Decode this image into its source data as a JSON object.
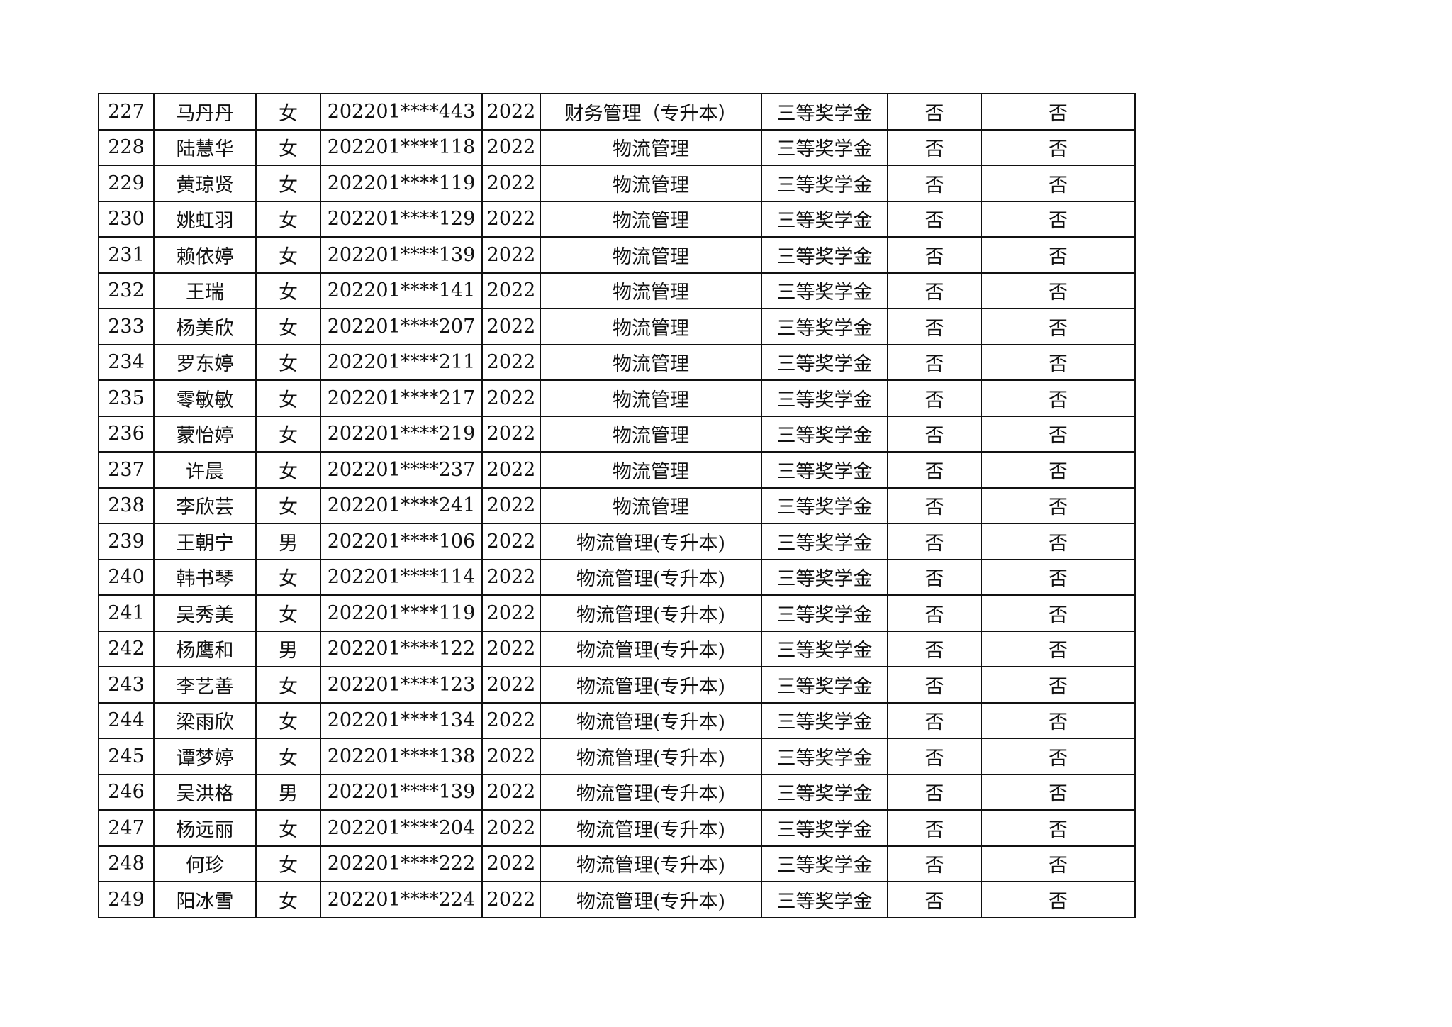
{
  "rows": [
    [
      "227",
      "马丹丹",
      "女",
      "202201****443",
      "2022",
      "财务管理（专升本）",
      "三等奖学金",
      "否",
      "否"
    ],
    [
      "228",
      "陆慧华",
      "女",
      "202201****118",
      "2022",
      "物流管理",
      "三等奖学金",
      "否",
      "否"
    ],
    [
      "229",
      "黄琼贤",
      "女",
      "202201****119",
      "2022",
      "物流管理",
      "三等奖学金",
      "否",
      "否"
    ],
    [
      "230",
      "姚虹羽",
      "女",
      "202201****129",
      "2022",
      "物流管理",
      "三等奖学金",
      "否",
      "否"
    ],
    [
      "231",
      "赖依婷",
      "女",
      "202201****139",
      "2022",
      "物流管理",
      "三等奖学金",
      "否",
      "否"
    ],
    [
      "232",
      "王瑞",
      "女",
      "202201****141",
      "2022",
      "物流管理",
      "三等奖学金",
      "否",
      "否"
    ],
    [
      "233",
      "杨美欣",
      "女",
      "202201****207",
      "2022",
      "物流管理",
      "三等奖学金",
      "否",
      "否"
    ],
    [
      "234",
      "罗东婷",
      "女",
      "202201****211",
      "2022",
      "物流管理",
      "三等奖学金",
      "否",
      "否"
    ],
    [
      "235",
      "零敏敏",
      "女",
      "202201****217",
      "2022",
      "物流管理",
      "三等奖学金",
      "否",
      "否"
    ],
    [
      "236",
      "蒙怡婷",
      "女",
      "202201****219",
      "2022",
      "物流管理",
      "三等奖学金",
      "否",
      "否"
    ],
    [
      "237",
      "许晨",
      "女",
      "202201****237",
      "2022",
      "物流管理",
      "三等奖学金",
      "否",
      "否"
    ],
    [
      "238",
      "李欣芸",
      "女",
      "202201****241",
      "2022",
      "物流管理",
      "三等奖学金",
      "否",
      "否"
    ],
    [
      "239",
      "王朝宁",
      "男",
      "202201****106",
      "2022",
      "物流管理(专升本)",
      "三等奖学金",
      "否",
      "否"
    ],
    [
      "240",
      "韩书琴",
      "女",
      "202201****114",
      "2022",
      "物流管理(专升本)",
      "三等奖学金",
      "否",
      "否"
    ],
    [
      "241",
      "吴秀美",
      "女",
      "202201****119",
      "2022",
      "物流管理(专升本)",
      "三等奖学金",
      "否",
      "否"
    ],
    [
      "242",
      "杨鹰和",
      "男",
      "202201****122",
      "2022",
      "物流管理(专升本)",
      "三等奖学金",
      "否",
      "否"
    ],
    [
      "243",
      "李艺善",
      "女",
      "202201****123",
      "2022",
      "物流管理(专升本)",
      "三等奖学金",
      "否",
      "否"
    ],
    [
      "244",
      "梁雨欣",
      "女",
      "202201****134",
      "2022",
      "物流管理(专升本)",
      "三等奖学金",
      "否",
      "否"
    ],
    [
      "245",
      "谭梦婷",
      "女",
      "202201****138",
      "2022",
      "物流管理(专升本)",
      "三等奖学金",
      "否",
      "否"
    ],
    [
      "246",
      "吴洪格",
      "男",
      "202201****139",
      "2022",
      "物流管理(专升本)",
      "三等奖学金",
      "否",
      "否"
    ],
    [
      "247",
      "杨远丽",
      "女",
      "202201****204",
      "2022",
      "物流管理(专升本)",
      "三等奖学金",
      "否",
      "否"
    ],
    [
      "248",
      "何珍",
      "女",
      "202201****222",
      "2022",
      "物流管理(专升本)",
      "三等奖学金",
      "否",
      "否"
    ],
    [
      "249",
      "阳冰雪",
      "女",
      "202201****224",
      "2022",
      "物流管理(专升本)",
      "三等奖学金",
      "否",
      "否"
    ]
  ]
}
